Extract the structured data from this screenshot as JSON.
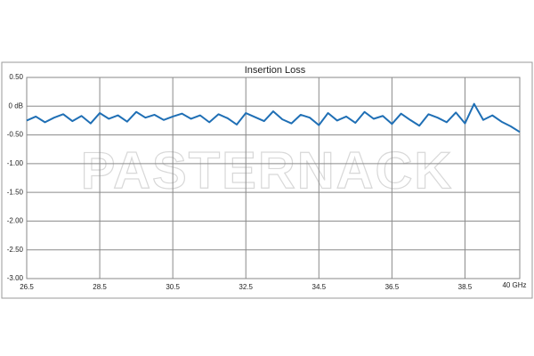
{
  "chart_data": {
    "type": "line",
    "title": "Insertion Loss",
    "watermark": "PASTERNACK",
    "x": [
      26.5,
      26.75,
      27,
      27.25,
      27.5,
      27.75,
      28,
      28.25,
      28.5,
      28.75,
      29,
      29.25,
      29.5,
      29.75,
      30,
      30.25,
      30.5,
      30.75,
      31,
      31.25,
      31.5,
      31.75,
      32,
      32.25,
      32.5,
      32.75,
      33,
      33.25,
      33.5,
      33.75,
      34,
      34.25,
      34.5,
      34.75,
      35,
      35.25,
      35.5,
      35.75,
      36,
      36.25,
      36.5,
      36.75,
      37,
      37.25,
      37.5,
      37.75,
      38,
      38.25,
      38.5,
      38.75,
      39,
      39.25,
      39.5,
      39.75,
      40
    ],
    "series": [
      {
        "name": "Insertion Loss",
        "color": "#1f6fb5",
        "values": [
          -0.25,
          -0.18,
          -0.28,
          -0.2,
          -0.14,
          -0.26,
          -0.17,
          -0.3,
          -0.12,
          -0.22,
          -0.16,
          -0.27,
          -0.1,
          -0.2,
          -0.15,
          -0.24,
          -0.18,
          -0.13,
          -0.22,
          -0.16,
          -0.28,
          -0.14,
          -0.21,
          -0.32,
          -0.12,
          -0.19,
          -0.26,
          -0.09,
          -0.23,
          -0.3,
          -0.15,
          -0.2,
          -0.33,
          -0.12,
          -0.25,
          -0.18,
          -0.29,
          -0.1,
          -0.22,
          -0.17,
          -0.31,
          -0.13,
          -0.24,
          -0.34,
          -0.14,
          -0.2,
          -0.28,
          -0.11,
          -0.3,
          0.04,
          -0.24,
          -0.16,
          -0.27,
          -0.35,
          -0.45
        ]
      }
    ],
    "xlim": [
      26.5,
      40
    ],
    "xticks": [
      26.5,
      28.5,
      30.5,
      32.5,
      34.5,
      36.5,
      38.5,
      {
        "value": 40,
        "label": "40 GHz"
      }
    ],
    "ylim": [
      -3,
      0.5
    ],
    "yticks": [
      {
        "value": 0.5,
        "label": "0.50"
      },
      {
        "value": 0,
        "label": "0 dB"
      },
      {
        "value": -0.5,
        "label": "-0.50"
      },
      {
        "value": -1,
        "label": "-1.00"
      },
      {
        "value": -1.5,
        "label": "-1.50"
      },
      {
        "value": -2,
        "label": "-2.00"
      },
      {
        "value": -2.5,
        "label": "-2.50"
      },
      {
        "value": -3,
        "label": "-3.00"
      }
    ],
    "grid": true
  }
}
